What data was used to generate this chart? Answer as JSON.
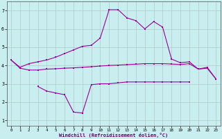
{
  "xlabel": "Windchill (Refroidissement éolien,°C)",
  "x": [
    0,
    1,
    2,
    3,
    4,
    5,
    6,
    7,
    8,
    9,
    10,
    11,
    12,
    13,
    14,
    15,
    16,
    17,
    18,
    19,
    20,
    21,
    22,
    23
  ],
  "upper": [
    4.3,
    3.9,
    4.1,
    4.2,
    4.3,
    4.45,
    4.65,
    4.85,
    5.05,
    5.1,
    5.5,
    7.05,
    7.05,
    6.6,
    6.45,
    6.0,
    6.4,
    6.1,
    4.35,
    4.15,
    4.2,
    3.8,
    3.9,
    3.25
  ],
  "middle": [
    4.3,
    3.85,
    3.75,
    3.75,
    3.8,
    3.82,
    3.85,
    3.87,
    3.9,
    3.93,
    3.97,
    4.0,
    4.02,
    4.05,
    4.07,
    4.1,
    4.1,
    4.1,
    4.08,
    4.05,
    4.1,
    3.8,
    3.85,
    3.25
  ],
  "lower": [
    null,
    null,
    null,
    2.85,
    2.6,
    2.5,
    2.4,
    1.45,
    1.4,
    2.95,
    3.0,
    3.0,
    3.05,
    3.1,
    3.1,
    3.1,
    3.1,
    3.1,
    3.1,
    3.1,
    3.1,
    null,
    null,
    null
  ],
  "bg_color": "#c8eef0",
  "line_color": "#990099",
  "grid_color": "#b0c8c8",
  "ylim": [
    0.7,
    7.5
  ],
  "xlim": [
    -0.5,
    23.5
  ],
  "yticks": [
    1,
    2,
    3,
    4,
    5,
    6,
    7
  ],
  "xticks": [
    0,
    1,
    2,
    3,
    4,
    5,
    6,
    7,
    8,
    9,
    10,
    11,
    12,
    13,
    14,
    15,
    16,
    17,
    18,
    19,
    20,
    21,
    22,
    23
  ]
}
